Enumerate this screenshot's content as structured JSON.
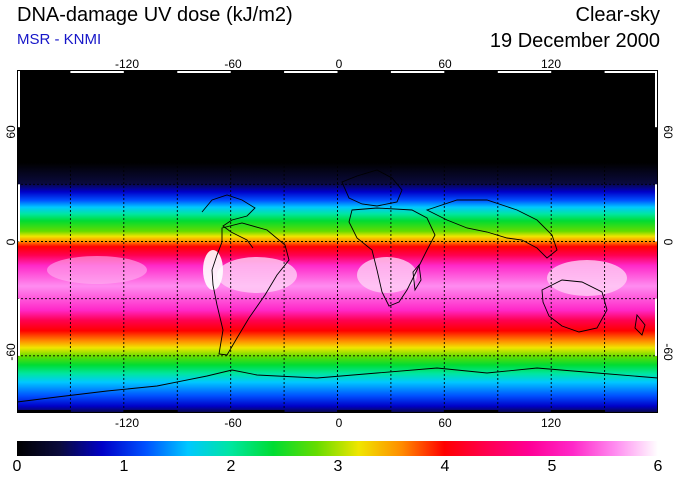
{
  "header": {
    "title": "DNA-damage UV dose (kJ/m2)",
    "subtitle": "MSR - KNMI",
    "sky_condition": "Clear-sky",
    "date": "19 December 2000",
    "subtitle_color": "#1616c8"
  },
  "map": {
    "lon_labels_top": [
      "-120",
      "-60",
      "0",
      "60",
      "120"
    ],
    "lon_labels_bottom": [
      "-120",
      "-60",
      "0",
      "60",
      "120"
    ],
    "lat_labels_left": [
      "60",
      "0",
      "-60"
    ],
    "lat_labels_right": [
      "60",
      "0",
      "-60"
    ],
    "grid_lon": [
      -150,
      -120,
      -90,
      -60,
      -30,
      0,
      30,
      60,
      90,
      120,
      150
    ],
    "grid_lat": [
      60,
      30,
      0,
      -30,
      -60
    ],
    "lon_range": [
      -180,
      180
    ],
    "lat_range": [
      -90,
      90
    ]
  },
  "colorbar": {
    "ticks": [
      "0",
      "1",
      "2",
      "3",
      "4",
      "5",
      "6"
    ],
    "range": [
      0,
      6
    ],
    "colors": [
      "#000000",
      "#0a0a3c",
      "#0000c8",
      "#0050ff",
      "#00c8ff",
      "#00e6a0",
      "#00dc32",
      "#64dc00",
      "#f0e600",
      "#ff8c00",
      "#ff0000",
      "#ff0050",
      "#ff0096",
      "#ff28c8",
      "#ff8cf0",
      "#ffffff"
    ]
  }
}
